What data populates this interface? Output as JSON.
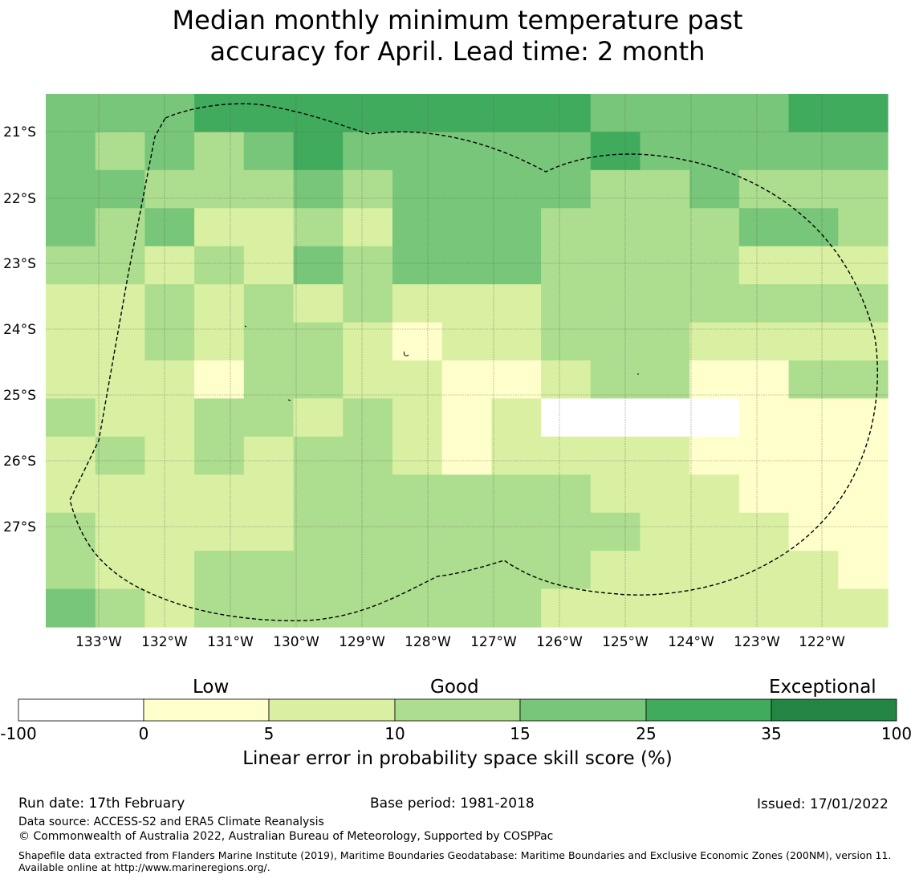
{
  "title_line1": "Median monthly minimum temperature past",
  "title_line2": "accuracy for April. Lead time: 2 month",
  "map": {
    "lat_ticks": [
      "21°S",
      "22°S",
      "23°S",
      "24°S",
      "25°S",
      "26°S",
      "27°S"
    ],
    "lon_ticks": [
      "133°W",
      "132°W",
      "131°W",
      "130°W",
      "129°W",
      "128°W",
      "127°W",
      "126°W",
      "125°W",
      "124°W",
      "123°W",
      "122°W"
    ],
    "grid_classes": [
      [
        4,
        4,
        4,
        5,
        5,
        5,
        5,
        5,
        5,
        5,
        5,
        4,
        4,
        4,
        4,
        5,
        5
      ],
      [
        4,
        3,
        4,
        3,
        4,
        5,
        4,
        4,
        4,
        4,
        4,
        5,
        4,
        4,
        4,
        4,
        4
      ],
      [
        4,
        4,
        3,
        3,
        3,
        4,
        3,
        4,
        4,
        4,
        4,
        3,
        3,
        4,
        3,
        3,
        3
      ],
      [
        4,
        3,
        4,
        2,
        2,
        3,
        2,
        4,
        4,
        4,
        3,
        3,
        3,
        3,
        4,
        4,
        3
      ],
      [
        3,
        3,
        2,
        3,
        2,
        4,
        3,
        4,
        4,
        4,
        3,
        3,
        3,
        3,
        2,
        2,
        2
      ],
      [
        2,
        2,
        3,
        2,
        3,
        2,
        3,
        2,
        2,
        2,
        3,
        3,
        3,
        3,
        3,
        3,
        3
      ],
      [
        2,
        2,
        3,
        2,
        3,
        3,
        2,
        1,
        2,
        2,
        3,
        3,
        3,
        2,
        2,
        2,
        2
      ],
      [
        2,
        2,
        2,
        1,
        3,
        3,
        2,
        2,
        1,
        1,
        2,
        3,
        3,
        1,
        1,
        3,
        3
      ],
      [
        3,
        2,
        2,
        3,
        3,
        2,
        3,
        2,
        1,
        2,
        0,
        0,
        0,
        0,
        1,
        1,
        1
      ],
      [
        2,
        3,
        2,
        3,
        2,
        3,
        3,
        2,
        1,
        2,
        2,
        2,
        2,
        1,
        1,
        1,
        1
      ],
      [
        2,
        2,
        2,
        2,
        2,
        3,
        3,
        3,
        3,
        3,
        3,
        2,
        2,
        2,
        1,
        1,
        1
      ],
      [
        3,
        2,
        2,
        2,
        2,
        3,
        3,
        3,
        3,
        3,
        3,
        3,
        2,
        2,
        2,
        1,
        1
      ],
      [
        3,
        2,
        2,
        3,
        3,
        3,
        3,
        3,
        3,
        3,
        3,
        2,
        2,
        2,
        2,
        2,
        1
      ],
      [
        4,
        3,
        2,
        3,
        3,
        3,
        3,
        3,
        3,
        3,
        2,
        2,
        2,
        2,
        2,
        2,
        2
      ]
    ]
  },
  "colorbar": {
    "category_labels": [
      "Low",
      "Good",
      "Exceptional"
    ],
    "ticks": [
      "-100",
      "0",
      "5",
      "10",
      "15",
      "25",
      "35",
      "100"
    ],
    "colors": [
      "#ffffff",
      "#ffffcc",
      "#d9f0a3",
      "#addd8e",
      "#78c679",
      "#41ab5d",
      "#238443"
    ],
    "xlabel": "Linear error in probability space skill score (%)"
  },
  "footer": {
    "run_date": "Run date: 17th February",
    "base_period": "Base period: 1981-2018",
    "issued": "Issued: 17/01/2022",
    "data_source": "Data source: ACCESS-S2 and ERA5 Climate Reanalysis",
    "copyright": "© Commonwealth of Australia 2022, Australian Bureau of Meteorology, Supported by COSPPac",
    "shapefile_note": "Shapefile data extracted from Flanders Marine Institute (2019), Maritime Boundaries Geodatabase: Maritime Boundaries and Exclusive Economic Zones (200NM), version 11. Available online at http://www.marineregions.org/."
  }
}
